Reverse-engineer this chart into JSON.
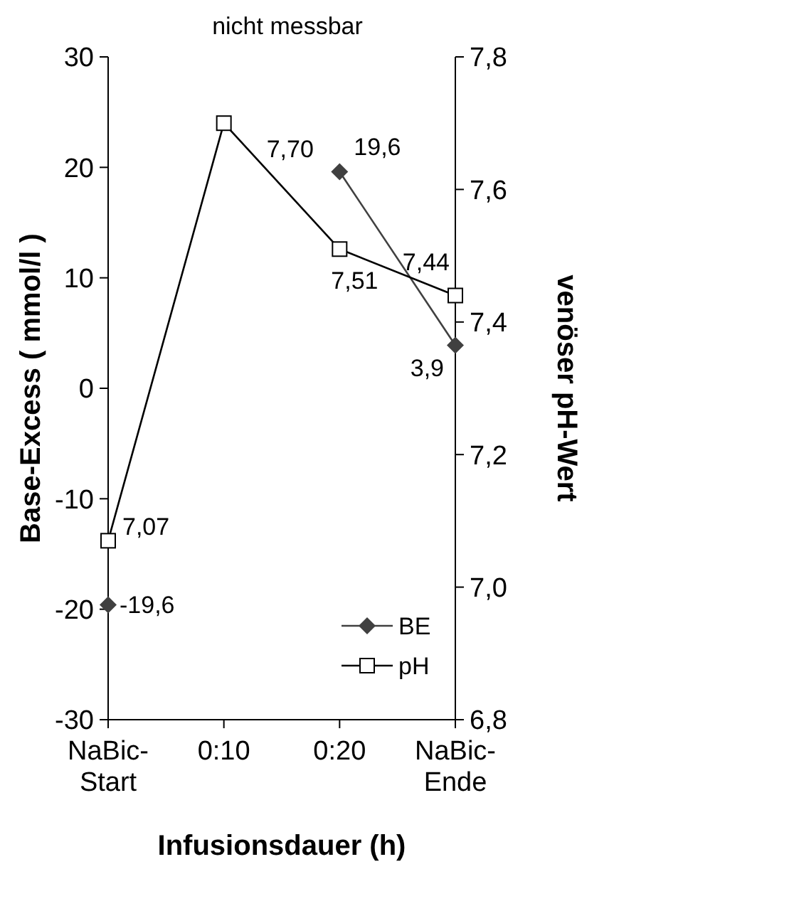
{
  "chart_data": {
    "type": "line",
    "xlabel": "Infusionsdauer (h)",
    "ylabel": "Base-Excess ( mmol/l )",
    "y2label": "venöser pH-Wert",
    "categories": [
      "NaBic-Start",
      "0:10",
      "0:20",
      "NaBic-Ende"
    ],
    "series": [
      {
        "name": "BE",
        "color": "#404040",
        "values": [
          -19.6,
          null,
          19.6,
          3.9
        ],
        "value_labels": [
          "-19,6",
          null,
          "19,6",
          "3,9"
        ],
        "marker": "diamond"
      },
      {
        "name": "pH",
        "color": "#000000",
        "values": [
          7.07,
          7.7,
          7.51,
          7.44
        ],
        "value_labels": [
          "7,07",
          "7,70",
          "7,51",
          "7,44"
        ],
        "axis": "y2",
        "marker": "square"
      }
    ],
    "ylim": [
      -30,
      30
    ],
    "yticks": [
      -30,
      -20,
      -10,
      0,
      10,
      20,
      30
    ],
    "y2lim": [
      6.8,
      7.8
    ],
    "y2ticks": [
      {
        "value": 6.8,
        "label": "6,8"
      },
      {
        "value": 7.0,
        "label": "7,0"
      },
      {
        "value": 7.2,
        "label": "7,2"
      },
      {
        "value": 7.4,
        "label": "7,4"
      },
      {
        "value": 7.6,
        "label": "7,6"
      },
      {
        "value": 7.8,
        "label": "7,8"
      }
    ],
    "annotations": [
      "nicht messbar"
    ],
    "legend": "bottom right",
    "grid": false
  }
}
